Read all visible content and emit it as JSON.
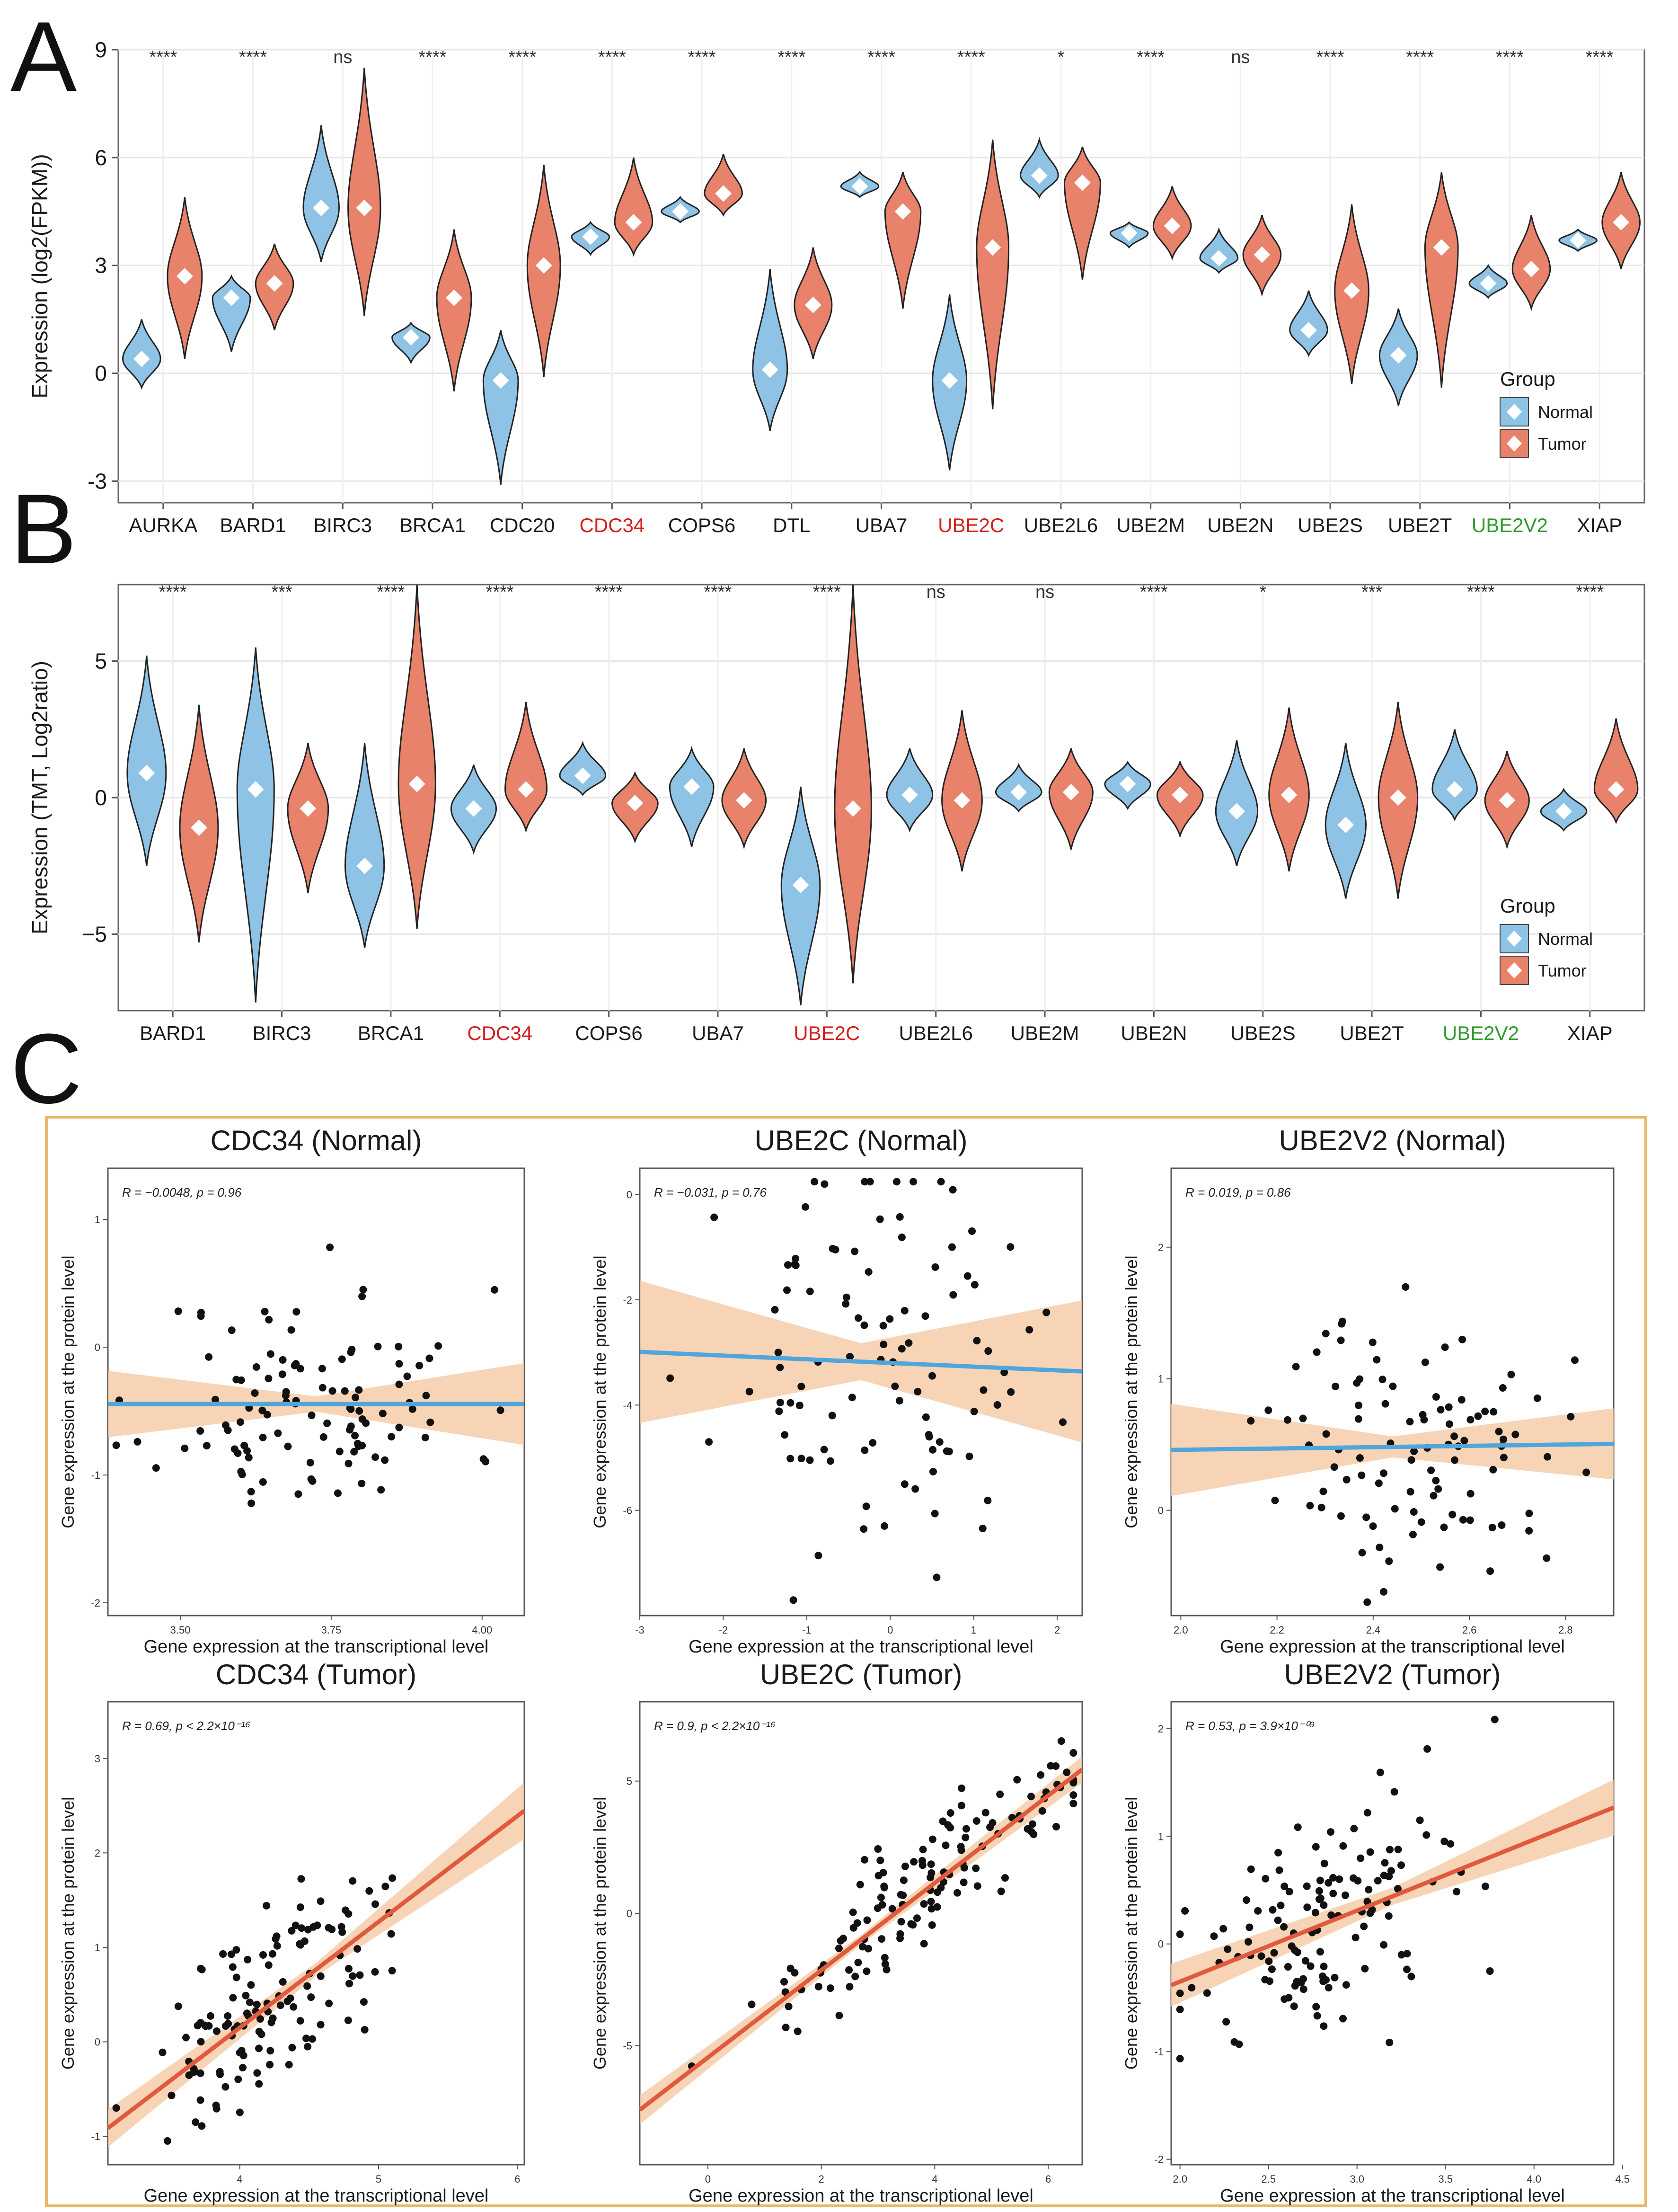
{
  "colors": {
    "normal": "#8ec3e6",
    "tumor": "#e8826a",
    "red_label": "#d21e1e",
    "green_label": "#2e9a2e",
    "fit_normal": "#4fa6dc",
    "fit_tumor": "#e05a3e",
    "band": "#f6c9a4",
    "frame_orange": "#e8b868"
  },
  "panel_labels": {
    "a": "A",
    "b": "B",
    "c": "C"
  },
  "legend": {
    "title": "Group",
    "normal": "Normal",
    "tumor": "Tumor"
  },
  "chart_data": [
    {
      "id": "A",
      "type": "violin",
      "ylabel": "Expression (log2(FPKM))",
      "ylim": [
        -3.6,
        9
      ],
      "yticks": [
        -3,
        0,
        3,
        6,
        9
      ],
      "categories": [
        "AURKA",
        "BARD1",
        "BIRC3",
        "BRCA1",
        "CDC20",
        "CDC34",
        "COPS6",
        "DTL",
        "UBA7",
        "UBE2C",
        "UBE2L6",
        "UBE2M",
        "UBE2N",
        "UBE2S",
        "UBE2T",
        "UBE2V2",
        "XIAP"
      ],
      "label_colors": [
        "",
        "",
        "",
        "",
        "",
        "red",
        "",
        "",
        "",
        "red",
        "",
        "",
        "",
        "",
        "",
        "green",
        ""
      ],
      "significance": [
        "****",
        "****",
        "ns",
        "****",
        "****",
        "****",
        "****",
        "****",
        "****",
        "****",
        "*",
        "****",
        "ns",
        "****",
        "****",
        "****",
        "****"
      ],
      "series": [
        {
          "name": "Normal",
          "medians": [
            0.4,
            2.1,
            4.6,
            1.0,
            -0.2,
            3.8,
            4.5,
            0.1,
            5.2,
            -0.2,
            5.5,
            3.9,
            3.2,
            1.2,
            0.5,
            2.5,
            3.7
          ],
          "ranges": [
            [
              -0.4,
              1.5
            ],
            [
              0.6,
              2.7
            ],
            [
              3.1,
              6.9
            ],
            [
              0.3,
              1.4
            ],
            [
              -3.1,
              1.2
            ],
            [
              3.3,
              4.2
            ],
            [
              4.2,
              4.9
            ],
            [
              -1.6,
              2.9
            ],
            [
              4.9,
              5.6
            ],
            [
              -2.7,
              2.2
            ],
            [
              4.9,
              6.5
            ],
            [
              3.5,
              4.2
            ],
            [
              2.8,
              4.0
            ],
            [
              0.5,
              2.3
            ],
            [
              -0.9,
              1.8
            ],
            [
              2.1,
              3.0
            ],
            [
              3.4,
              4.0
            ]
          ]
        },
        {
          "name": "Tumor",
          "medians": [
            2.7,
            2.5,
            4.6,
            2.1,
            3.0,
            4.2,
            5.0,
            1.9,
            4.5,
            3.5,
            5.3,
            4.1,
            3.3,
            2.3,
            3.5,
            2.9,
            4.2
          ],
          "ranges": [
            [
              0.4,
              4.9
            ],
            [
              1.2,
              3.6
            ],
            [
              1.6,
              8.5
            ],
            [
              -0.5,
              4.0
            ],
            [
              -0.1,
              5.8
            ],
            [
              3.3,
              6.0
            ],
            [
              4.4,
              6.1
            ],
            [
              0.4,
              3.5
            ],
            [
              1.8,
              5.6
            ],
            [
              -1.0,
              6.5
            ],
            [
              2.6,
              6.3
            ],
            [
              3.2,
              5.2
            ],
            [
              2.2,
              4.4
            ],
            [
              -0.3,
              4.7
            ],
            [
              -0.4,
              5.6
            ],
            [
              1.8,
              4.4
            ],
            [
              2.9,
              5.6
            ]
          ]
        }
      ]
    },
    {
      "id": "B",
      "type": "violin",
      "ylabel": "Expression (TMT, Log2ratio)",
      "ylim": [
        -7.8,
        7.8
      ],
      "yticks": [
        -5,
        0,
        5
      ],
      "ytick_labels": [
        "−5",
        "0",
        "5"
      ],
      "categories": [
        "BARD1",
        "BIRC3",
        "BRCA1",
        "CDC34",
        "COPS6",
        "UBA7",
        "UBE2C",
        "UBE2L6",
        "UBE2M",
        "UBE2N",
        "UBE2S",
        "UBE2T",
        "UBE2V2",
        "XIAP"
      ],
      "label_colors": [
        "",
        "",
        "",
        "red",
        "",
        "",
        "red",
        "",
        "",
        "",
        "",
        "",
        "green",
        ""
      ],
      "significance": [
        "****",
        "***",
        "****",
        "****",
        "****",
        "****",
        "****",
        "ns",
        "ns",
        "****",
        "*",
        "***",
        "****",
        "****"
      ],
      "series": [
        {
          "name": "Normal",
          "medians": [
            0.9,
            0.3,
            -2.5,
            -0.4,
            0.8,
            0.4,
            -3.2,
            0.1,
            0.2,
            0.5,
            -0.5,
            -1.0,
            0.3,
            -0.5
          ],
          "ranges": [
            [
              -2.5,
              5.2
            ],
            [
              -7.5,
              5.5
            ],
            [
              -5.5,
              2.0
            ],
            [
              -2.0,
              1.2
            ],
            [
              0.1,
              2.0
            ],
            [
              -1.8,
              1.8
            ],
            [
              -7.6,
              0.4
            ],
            [
              -1.2,
              1.8
            ],
            [
              -0.5,
              1.2
            ],
            [
              -0.4,
              1.3
            ],
            [
              -2.5,
              2.1
            ],
            [
              -3.7,
              2.0
            ],
            [
              -0.8,
              2.5
            ],
            [
              -1.2,
              0.3
            ]
          ]
        },
        {
          "name": "Tumor",
          "medians": [
            -1.1,
            -0.4,
            0.5,
            0.3,
            -0.2,
            -0.1,
            -0.4,
            -0.1,
            0.2,
            0.1,
            0.1,
            0.0,
            -0.1,
            0.3
          ],
          "ranges": [
            [
              -5.3,
              3.4
            ],
            [
              -3.5,
              2.0
            ],
            [
              -4.8,
              7.8
            ],
            [
              -1.2,
              3.5
            ],
            [
              -1.6,
              0.9
            ],
            [
              -1.8,
              1.8
            ],
            [
              -6.8,
              7.8
            ],
            [
              -2.7,
              3.2
            ],
            [
              -1.9,
              1.8
            ],
            [
              -1.4,
              1.3
            ],
            [
              -2.7,
              3.3
            ],
            [
              -3.7,
              3.5
            ],
            [
              -1.8,
              1.7
            ],
            [
              -0.9,
              2.9
            ]
          ]
        }
      ]
    },
    {
      "id": "C1",
      "type": "scatter",
      "title": "CDC34 (Normal)",
      "annotation": "R = −0.0048, p = 0.96",
      "xlabel": "Gene expression at the transcriptional level",
      "ylabel": "Gene expression at the protein level",
      "xlim": [
        3.38,
        4.07
      ],
      "ylim": [
        -2.1,
        1.4
      ],
      "xticks": [
        3.5,
        3.75,
        4.0
      ],
      "xtick_labels": [
        "3.50",
        "3.75",
        "4.00"
      ],
      "yticks": [
        -2,
        -1,
        0,
        1
      ],
      "ytick_labels": [
        "-2",
        "-1",
        "0",
        "1"
      ],
      "fit": {
        "intercept": -0.445,
        "slope": 0.0
      },
      "band": [
        0.26,
        0.06,
        0.32
      ],
      "fit_color": "normal",
      "seed": 11,
      "n": 110,
      "points": {
        "x_mean": 3.72,
        "x_sd": 0.13,
        "y_sd": 0.45
      }
    },
    {
      "id": "C2",
      "type": "scatter",
      "title": "UBE2C (Normal)",
      "annotation": "R = −0.031, p = 0.76",
      "xlabel": "Gene expression at the transcriptional level",
      "ylabel": "Gene expression at the protein level",
      "xlim": [
        -3.0,
        2.3
      ],
      "ylim": [
        -8.0,
        0.5
      ],
      "xticks": [
        -3,
        -2,
        -1,
        0,
        1,
        2
      ],
      "xtick_labels": [
        "-3",
        "-2",
        "-1",
        "0",
        "1",
        "2"
      ],
      "yticks": [
        -6,
        -4,
        -2,
        0
      ],
      "ytick_labels": [
        "-6",
        "-4",
        "-2",
        "0"
      ],
      "fit": {
        "intercept": -3.2,
        "slope": -0.07
      },
      "band": [
        1.35,
        0.35,
        1.35
      ],
      "fit_color": "normal",
      "seed": 23,
      "n": 100,
      "points": {
        "x_mean": -0.2,
        "x_sd": 0.9,
        "y_sd": 1.8
      }
    },
    {
      "id": "C3",
      "type": "scatter",
      "title": "UBE2V2 (Normal)",
      "annotation": "R = 0.019, p = 0.86",
      "xlabel": "Gene expression at the transcriptional level",
      "ylabel": "Gene expression at the protein level",
      "xlim": [
        1.98,
        2.9
      ],
      "ylim": [
        -0.8,
        2.6
      ],
      "xticks": [
        2.0,
        2.2,
        2.4,
        2.6,
        2.8
      ],
      "xtick_labels": [
        "2.0",
        "2.2",
        "2.4",
        "2.6",
        "2.8"
      ],
      "yticks": [
        0,
        1,
        2
      ],
      "ytick_labels": [
        "0",
        "1",
        "2"
      ],
      "fit": {
        "intercept": 0.36,
        "slope": 0.05
      },
      "band": [
        0.35,
        0.08,
        0.27
      ],
      "fit_color": "normal",
      "seed": 37,
      "n": 100,
      "points": {
        "x_mean": 2.5,
        "x_sd": 0.15,
        "y_sd": 0.5
      }
    },
    {
      "id": "C4",
      "type": "scatter",
      "title": "CDC34 (Tumor)",
      "annotation": "R = 0.69, p < 2.2×10⁻¹⁶",
      "xlabel": "Gene expression at the transcriptional level",
      "ylabel": "Gene expression at the protein level",
      "xlim": [
        3.05,
        6.05
      ],
      "ylim": [
        -1.3,
        3.6
      ],
      "xticks": [
        4,
        5,
        6
      ],
      "xtick_labels": [
        "4",
        "5",
        "6"
      ],
      "yticks": [
        -1,
        0,
        1,
        2,
        3
      ],
      "ytick_labels": [
        "-1",
        "0",
        "1",
        "2",
        "3"
      ],
      "fit": {
        "intercept": -4.33,
        "slope": 1.12
      },
      "band": [
        0.2,
        0.07,
        0.3
      ],
      "fit_color": "tumor",
      "seed": 51,
      "n": 130,
      "points": {
        "x_mean": 4.2,
        "x_sd": 0.45,
        "y_sd": 0.5
      }
    },
    {
      "id": "C5",
      "type": "scatter",
      "title": "UBE2C (Tumor)",
      "annotation": "R = 0.9, p < 2.2×10⁻¹⁶",
      "xlabel": "Gene expression at the transcriptional level",
      "ylabel": "Gene expression at the protein level",
      "xlim": [
        -1.2,
        6.6
      ],
      "ylim": [
        -9.5,
        8.0
      ],
      "xticks": [
        0,
        2,
        4,
        6
      ],
      "xtick_labels": [
        "0",
        "2",
        "4",
        "6"
      ],
      "yticks": [
        -5,
        0,
        5
      ],
      "ytick_labels": [
        "-5",
        "0",
        "5"
      ],
      "fit": {
        "intercept": -5.45,
        "slope": 1.65
      },
      "band": [
        0.55,
        0.18,
        0.5
      ],
      "fit_color": "tumor",
      "seed": 67,
      "n": 130,
      "points": {
        "x_mean": 3.8,
        "x_sd": 1.4,
        "y_sd": 1.1
      }
    },
    {
      "id": "C6",
      "type": "scatter",
      "title": "UBE2V2 (Tumor)",
      "annotation": "R = 0.53, p = 3.9×10⁻⁰⁹",
      "xlabel": "Gene expression at the transcriptional level",
      "ylabel": "Gene expression at the protein level",
      "xlim": [
        1.95,
        4.45
      ],
      "ylim": [
        -2.05,
        2.25
      ],
      "xticks": [
        2.0,
        2.5,
        3.0,
        3.5,
        4.0,
        4.5
      ],
      "xtick_labels": [
        "2.0",
        "2.5",
        "3.0",
        "3.5",
        "4.0",
        "4.5"
      ],
      "yticks": [
        -2,
        -1,
        0,
        1,
        2
      ],
      "ytick_labels": [
        "-2",
        "-1",
        "0",
        "1",
        "2"
      ],
      "fit": {
        "intercept": -1.67,
        "slope": 0.66
      },
      "band": [
        0.2,
        0.08,
        0.26
      ],
      "fit_color": "tumor",
      "seed": 83,
      "n": 130,
      "points": {
        "x_mean": 2.8,
        "x_sd": 0.4,
        "y_sd": 0.5
      }
    }
  ]
}
